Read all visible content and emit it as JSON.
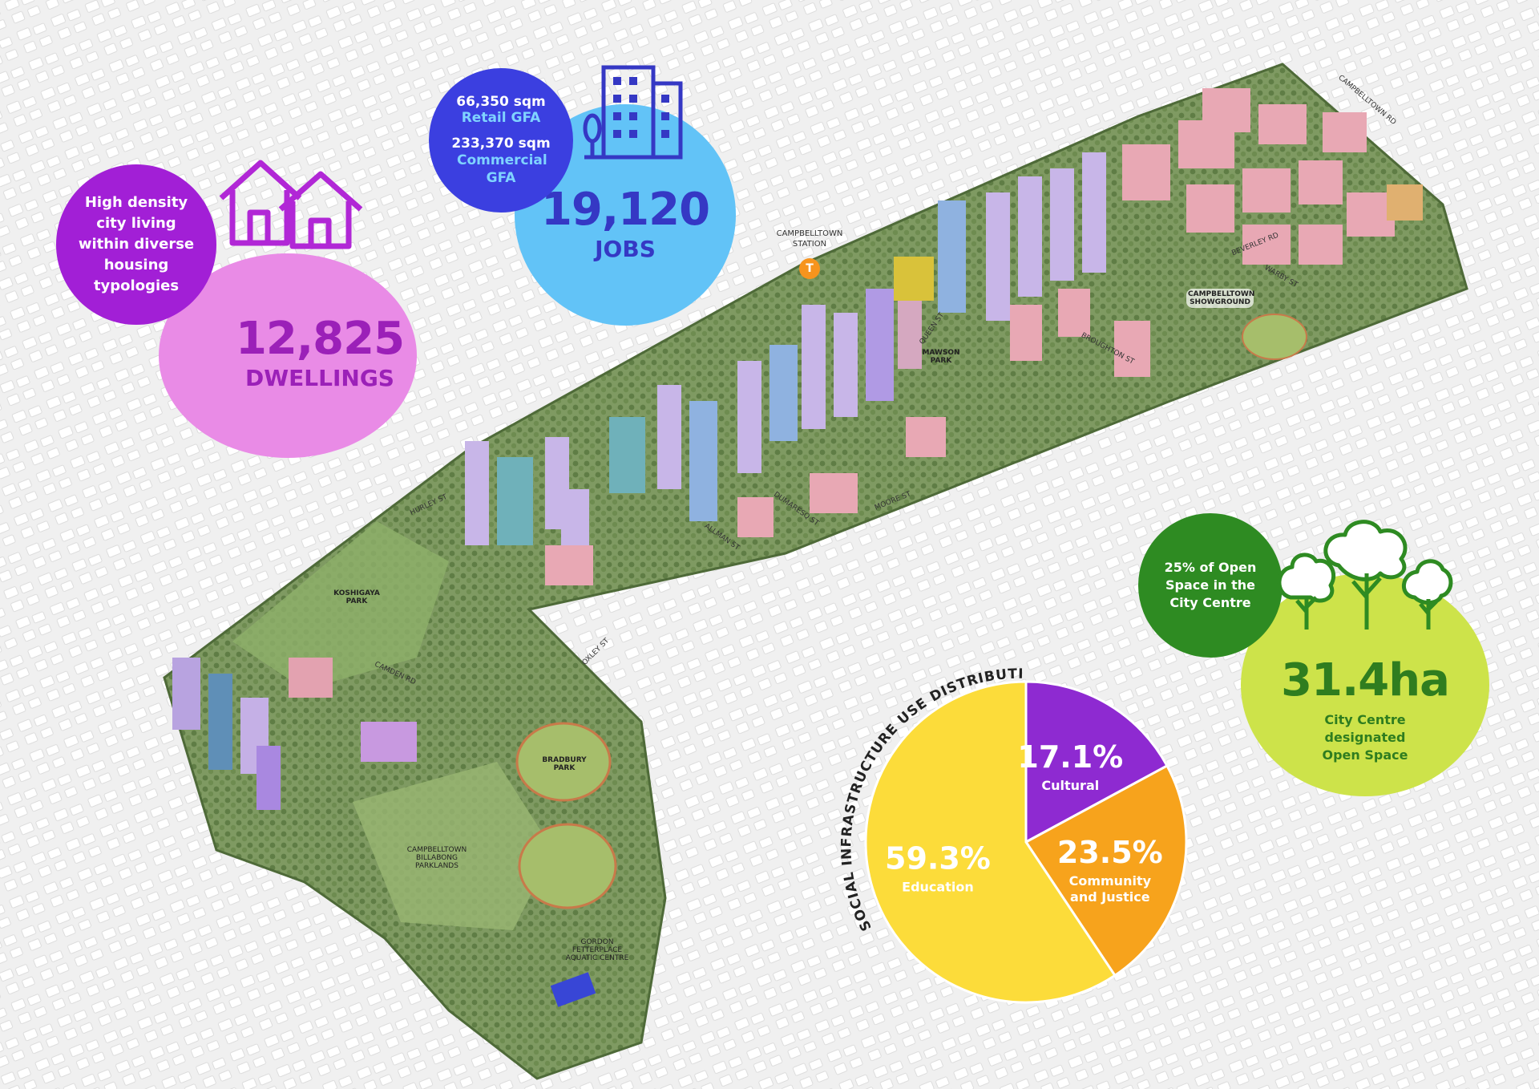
{
  "dwellings": {
    "note": "High density city living within diverse housing typologies",
    "value": "12,825",
    "label": "DWELLINGS"
  },
  "jobs": {
    "retail_value": "66,350 sqm",
    "retail_label": "Retail GFA",
    "commercial_value": "233,370 sqm",
    "commercial_label": "Commercial GFA",
    "value": "19,120",
    "label": "JOBS"
  },
  "open_space": {
    "note": "25% of Open Space in the City Centre",
    "value": "31.4ha",
    "label": "City Centre designated Open Space"
  },
  "station": {
    "label": "CAMPBELLTOWN STATION",
    "icon_letter": "T"
  },
  "map_labels": {
    "campbelltown_rd": "CAMPBELLTOWN RD",
    "beverley_rd": "BEVERLEY RD",
    "warby_st": "WARBY ST",
    "showground": "CAMPBELLTOWN SHOWGROUND",
    "queen_st": "QUEEN ST",
    "mawson_park": "MAWSON PARK",
    "broughton_st": "BROUGHTON ST",
    "moore_st": "MOORE ST",
    "dumaresq_st": "DUMARESQ ST",
    "allman_st": "ALLMAN ST",
    "hurley_st": "HURLEY ST",
    "koshigaya_park": "KOSHIGAYA PARK",
    "camden_rd": "CAMDEN RD",
    "oxley_st": "OXLEY ST",
    "bradbury_park": "BRADBURY PARK",
    "billabong_parklands": "CAMPBELLTOWN BILLABONG PARKLANDS",
    "aquatic_centre": "GORDON FETTERPLACE AQUATIC CENTRE"
  },
  "colors": {
    "dwellings_circle": "#e98be6",
    "dwellings_note": "#a21fd6",
    "dwellings_text": "#9b20b8",
    "jobs_circle": "#62c3f7",
    "jobs_note": "#3b3fe0",
    "jobs_text": "#3538c4",
    "open_circle": "#cde34a",
    "open_note": "#2e8b22",
    "open_text": "#2f7d1f"
  },
  "chart_data": {
    "type": "pie",
    "title": "SOCIAL INFRASTRUCTURE USE DISTRIBUTION",
    "slices": [
      {
        "label": "Cultural",
        "value": 17.1,
        "display": "17.1%",
        "color": "#8e2ad1"
      },
      {
        "label": "Community and Justice",
        "value": 23.5,
        "display": "23.5%",
        "color": "#f7a31c"
      },
      {
        "label": "Education",
        "value": 59.3,
        "display": "59.3%",
        "color": "#fcdc3a"
      }
    ]
  }
}
